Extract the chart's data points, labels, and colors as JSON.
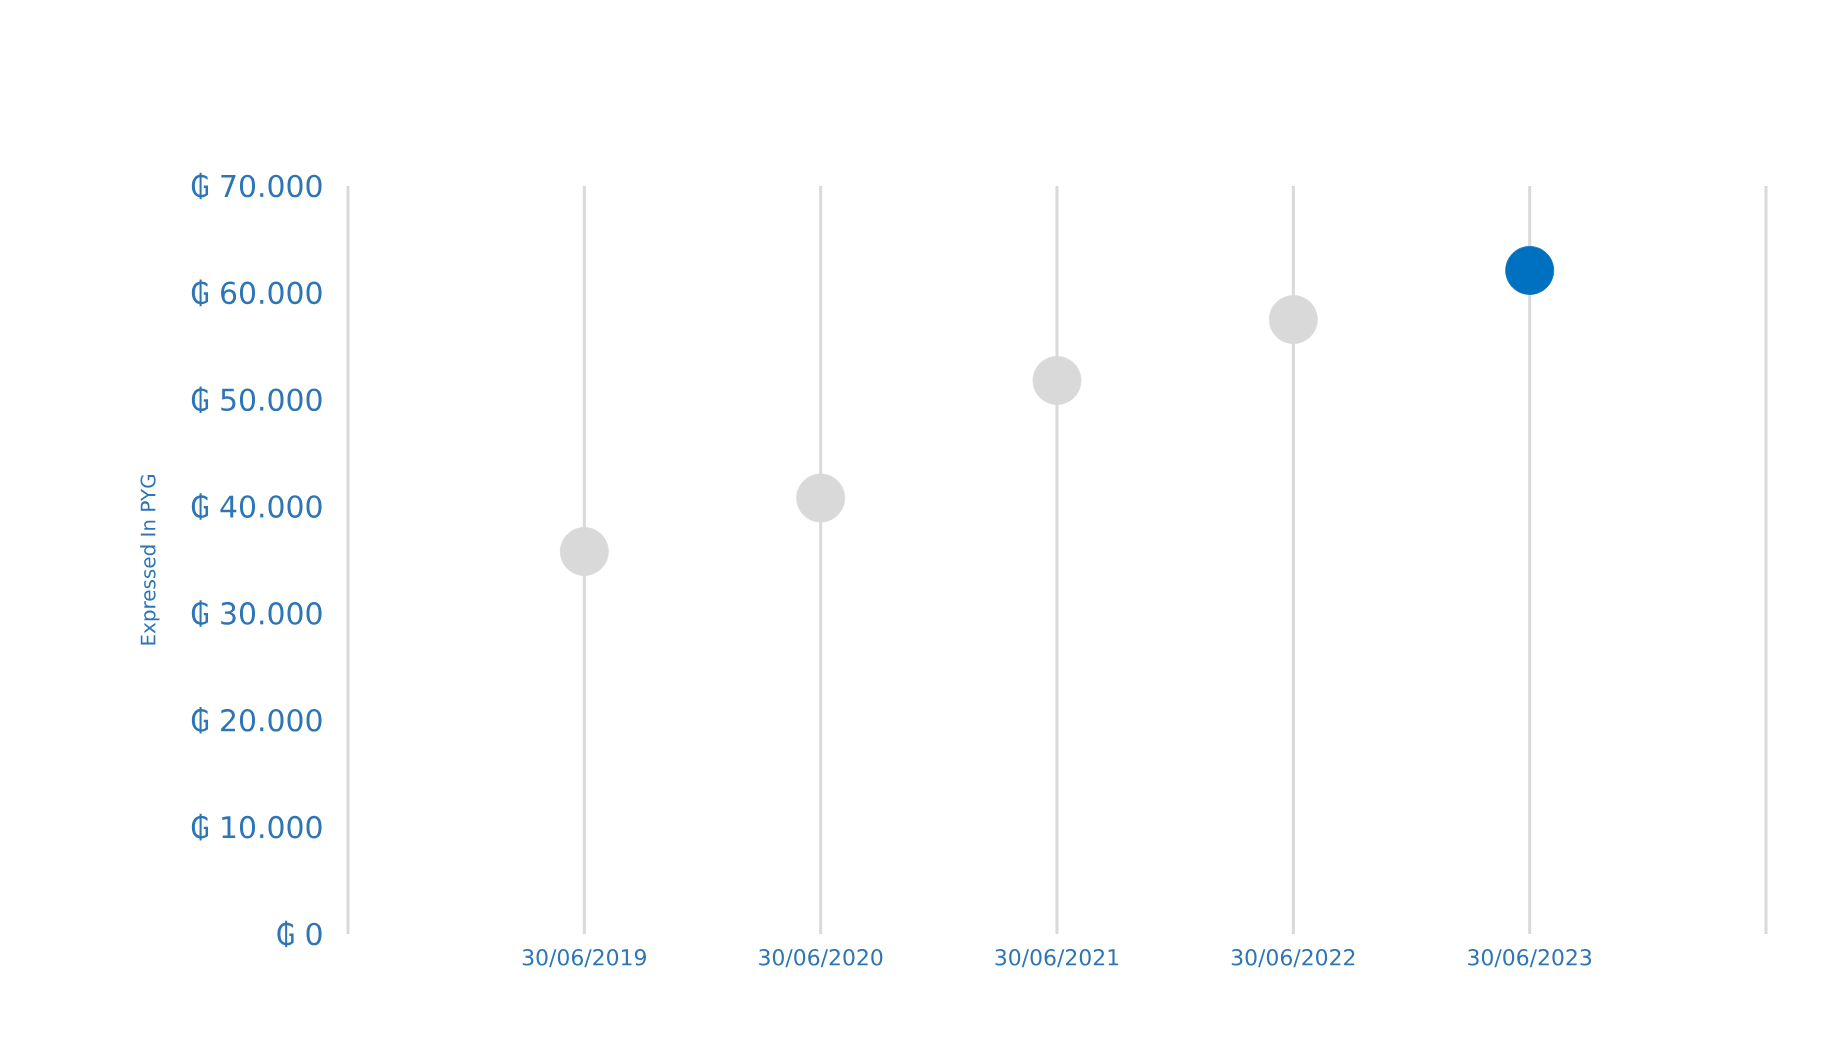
{
  "chart_data": {
    "type": "scatter",
    "ylabel": "Expressed In PYG",
    "categories": [
      "30/06/2019",
      "30/06/2020",
      "30/06/2021",
      "30/06/2022",
      "30/06/2023"
    ],
    "values": [
      35800,
      40800,
      51800,
      57500,
      62100
    ],
    "colors": [
      "#d9d9d9",
      "#d9d9d9",
      "#d9d9d9",
      "#d9d9d9",
      "#0070c0"
    ],
    "marker": "circle",
    "ylim": [
      0,
      70000
    ],
    "yticks": [
      {
        "value": 0,
        "label": "₲ 0"
      },
      {
        "value": 10000,
        "label": "₲ 10.000"
      },
      {
        "value": 20000,
        "label": "₲ 20.000"
      },
      {
        "value": 30000,
        "label": "₲ 30.000"
      },
      {
        "value": 40000,
        "label": "₲ 40.000"
      },
      {
        "value": 50000,
        "label": "₲ 50.000"
      },
      {
        "value": 60000,
        "label": "₲ 60.000"
      },
      {
        "value": 70000,
        "label": "₲ 70.000"
      }
    ],
    "grid": "x"
  }
}
